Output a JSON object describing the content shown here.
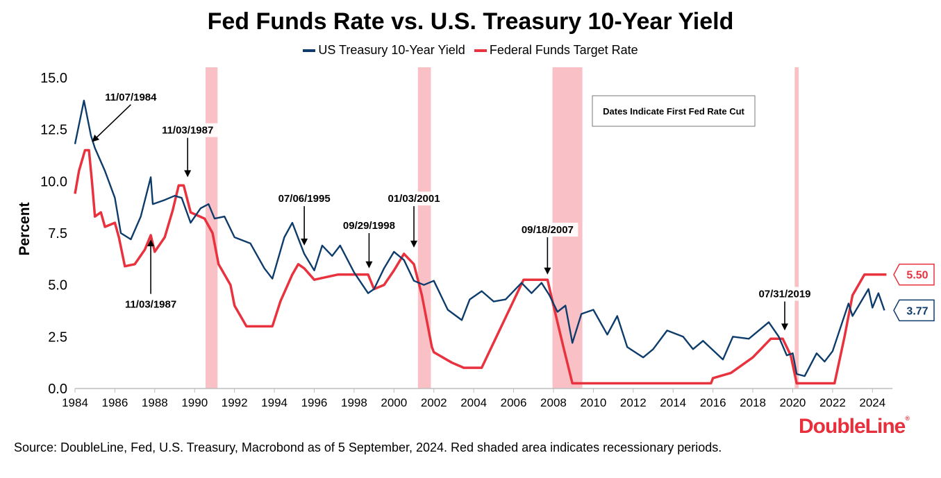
{
  "chart_data": {
    "type": "line",
    "title": "Fed Funds Rate vs. U.S. Treasury 10-Year Yield",
    "ylabel": "Percent",
    "xlim": [
      1984,
      2025
    ],
    "ylim": [
      0,
      15
    ],
    "x_ticks": [
      1984,
      1986,
      1988,
      1990,
      1992,
      1994,
      1996,
      1998,
      2000,
      2002,
      2004,
      2006,
      2008,
      2010,
      2012,
      2014,
      2016,
      2018,
      2020,
      2022,
      2024
    ],
    "y_ticks": [
      0,
      2.5,
      5,
      7.5,
      10,
      12.5,
      15
    ],
    "y_tick_labels": [
      "0.0",
      "2.5",
      "5.0",
      "7.5",
      "10.0",
      "12.5",
      "15.0"
    ],
    "legend_position": "top-center",
    "recessions": [
      [
        1990.55,
        1991.15
      ],
      [
        2001.2,
        2001.85
      ],
      [
        2007.95,
        2009.45
      ],
      [
        2020.1,
        2020.3
      ]
    ],
    "recession_color": "#f9c0c6",
    "series": [
      {
        "name": "US Treasury 10-Year Yield",
        "color": "#0d3c6b",
        "points": [
          [
            1984.0,
            11.8
          ],
          [
            1984.45,
            13.9
          ],
          [
            1984.8,
            12.2
          ],
          [
            1985.0,
            11.6
          ],
          [
            1985.5,
            10.5
          ],
          [
            1986.0,
            9.2
          ],
          [
            1986.3,
            7.5
          ],
          [
            1986.8,
            7.2
          ],
          [
            1987.3,
            8.3
          ],
          [
            1987.8,
            10.2
          ],
          [
            1987.9,
            8.9
          ],
          [
            1988.5,
            9.1
          ],
          [
            1989.0,
            9.3
          ],
          [
            1989.35,
            9.2
          ],
          [
            1989.8,
            8.0
          ],
          [
            1990.3,
            8.7
          ],
          [
            1990.7,
            8.9
          ],
          [
            1991.0,
            8.2
          ],
          [
            1991.5,
            8.3
          ],
          [
            1992.0,
            7.3
          ],
          [
            1992.8,
            7.0
          ],
          [
            1993.5,
            5.8
          ],
          [
            1993.9,
            5.3
          ],
          [
            1994.5,
            7.3
          ],
          [
            1994.9,
            8.0
          ],
          [
            1995.5,
            6.5
          ],
          [
            1996.0,
            5.7
          ],
          [
            1996.4,
            6.9
          ],
          [
            1996.9,
            6.4
          ],
          [
            1997.3,
            6.9
          ],
          [
            1998.0,
            5.6
          ],
          [
            1998.7,
            4.6
          ],
          [
            1999.0,
            4.8
          ],
          [
            1999.5,
            5.8
          ],
          [
            2000.0,
            6.6
          ],
          [
            2000.5,
            6.2
          ],
          [
            2001.0,
            5.2
          ],
          [
            2001.5,
            5.0
          ],
          [
            2002.0,
            5.2
          ],
          [
            2002.7,
            3.8
          ],
          [
            2003.4,
            3.3
          ],
          [
            2003.8,
            4.3
          ],
          [
            2004.4,
            4.7
          ],
          [
            2005.0,
            4.2
          ],
          [
            2005.6,
            4.3
          ],
          [
            2006.4,
            5.1
          ],
          [
            2006.9,
            4.6
          ],
          [
            2007.4,
            5.1
          ],
          [
            2007.8,
            4.5
          ],
          [
            2008.2,
            3.7
          ],
          [
            2008.6,
            4.0
          ],
          [
            2008.95,
            2.2
          ],
          [
            2009.4,
            3.6
          ],
          [
            2010.0,
            3.8
          ],
          [
            2010.7,
            2.6
          ],
          [
            2011.2,
            3.5
          ],
          [
            2011.7,
            2.0
          ],
          [
            2012.5,
            1.5
          ],
          [
            2013.0,
            1.9
          ],
          [
            2013.7,
            2.8
          ],
          [
            2014.5,
            2.5
          ],
          [
            2015.0,
            1.9
          ],
          [
            2015.5,
            2.3
          ],
          [
            2016.5,
            1.4
          ],
          [
            2017.0,
            2.5
          ],
          [
            2017.8,
            2.4
          ],
          [
            2018.8,
            3.2
          ],
          [
            2019.3,
            2.5
          ],
          [
            2019.7,
            1.6
          ],
          [
            2020.0,
            1.7
          ],
          [
            2020.2,
            0.7
          ],
          [
            2020.6,
            0.6
          ],
          [
            2021.2,
            1.7
          ],
          [
            2021.6,
            1.3
          ],
          [
            2022.0,
            1.8
          ],
          [
            2022.8,
            4.1
          ],
          [
            2023.0,
            3.5
          ],
          [
            2023.8,
            4.8
          ],
          [
            2024.0,
            3.9
          ],
          [
            2024.3,
            4.6
          ],
          [
            2024.6,
            3.77
          ]
        ]
      },
      {
        "name": "Federal Funds Target Rate",
        "color": "#e8323e",
        "points": [
          [
            1984.0,
            9.4
          ],
          [
            1984.2,
            10.5
          ],
          [
            1984.5,
            11.5
          ],
          [
            1984.7,
            11.5
          ],
          [
            1984.85,
            10.0
          ],
          [
            1985.0,
            8.3
          ],
          [
            1985.3,
            8.5
          ],
          [
            1985.5,
            7.8
          ],
          [
            1986.0,
            8.0
          ],
          [
            1986.2,
            7.3
          ],
          [
            1986.5,
            5.9
          ],
          [
            1987.0,
            6.0
          ],
          [
            1987.5,
            6.7
          ],
          [
            1987.8,
            7.4
          ],
          [
            1988.0,
            6.6
          ],
          [
            1988.5,
            7.3
          ],
          [
            1988.9,
            8.6
          ],
          [
            1989.2,
            9.8
          ],
          [
            1989.45,
            9.8
          ],
          [
            1989.8,
            8.5
          ],
          [
            1990.5,
            8.2
          ],
          [
            1990.9,
            7.5
          ],
          [
            1991.2,
            6.0
          ],
          [
            1991.8,
            5.0
          ],
          [
            1992.0,
            4.0
          ],
          [
            1992.6,
            3.0
          ],
          [
            1993.0,
            3.0
          ],
          [
            1993.9,
            3.0
          ],
          [
            1994.3,
            4.2
          ],
          [
            1994.9,
            5.5
          ],
          [
            1995.2,
            6.0
          ],
          [
            1995.5,
            5.8
          ],
          [
            1996.0,
            5.25
          ],
          [
            1997.2,
            5.5
          ],
          [
            1998.7,
            5.5
          ],
          [
            1999.0,
            4.8
          ],
          [
            1999.5,
            5.0
          ],
          [
            2000.0,
            5.7
          ],
          [
            2000.5,
            6.5
          ],
          [
            2001.0,
            6.0
          ],
          [
            2001.4,
            4.5
          ],
          [
            2001.9,
            2.0
          ],
          [
            2002.0,
            1.75
          ],
          [
            2002.9,
            1.25
          ],
          [
            2003.5,
            1.0
          ],
          [
            2004.4,
            1.0
          ],
          [
            2006.5,
            5.25
          ],
          [
            2007.7,
            5.25
          ],
          [
            2008.0,
            4.0
          ],
          [
            2008.5,
            2.0
          ],
          [
            2008.95,
            0.25
          ],
          [
            2015.9,
            0.25
          ],
          [
            2016.0,
            0.5
          ],
          [
            2016.9,
            0.75
          ],
          [
            2018.0,
            1.5
          ],
          [
            2018.9,
            2.4
          ],
          [
            2019.5,
            2.4
          ],
          [
            2019.9,
            1.6
          ],
          [
            2020.2,
            0.25
          ],
          [
            2022.1,
            0.25
          ],
          [
            2022.6,
            2.5
          ],
          [
            2023.0,
            4.5
          ],
          [
            2023.6,
            5.5
          ],
          [
            2024.7,
            5.5
          ]
        ]
      }
    ],
    "annotations": [
      {
        "label": "11/07/1984",
        "x": 1984.85,
        "y": 11.9,
        "text_x": 1986.8,
        "text_y": 13.7
      },
      {
        "label": "11/03/1987",
        "x": 1989.65,
        "y": 10.2,
        "text_x": 1989.65,
        "text_y": 12.1
      },
      {
        "label": "11/03/1987",
        "x": 1987.8,
        "y": 7.2,
        "text_x": 1987.8,
        "text_y": 4.5
      },
      {
        "label": "07/06/1995",
        "x": 1995.5,
        "y": 6.9,
        "text_x": 1995.5,
        "text_y": 8.8
      },
      {
        "label": "09/29/1998",
        "x": 1998.75,
        "y": 5.8,
        "text_x": 1998.75,
        "text_y": 7.5
      },
      {
        "label": "01/03/2001",
        "x": 2001.0,
        "y": 6.8,
        "text_x": 2001.0,
        "text_y": 8.8
      },
      {
        "label": "09/18/2007",
        "x": 2007.7,
        "y": 5.5,
        "text_x": 2007.7,
        "text_y": 7.3
      },
      {
        "label": "07/31/2019",
        "x": 2019.6,
        "y": 2.8,
        "text_x": 2019.6,
        "text_y": 4.2
      }
    ],
    "note_box": "Dates Indicate First Fed Rate Cut",
    "end_labels": [
      {
        "label": "5.50",
        "value": 5.5,
        "color": "#e8323e"
      },
      {
        "label": "3.77",
        "value": 3.77,
        "color": "#0d3c6b"
      }
    ]
  },
  "source_note": "Source: DoubleLine, Fed, U.S. Treasury, Macrobond as of 5 September, 2024. Red shaded area indicates recessionary periods.",
  "brand": {
    "name": "DoubleLine",
    "mark": "®"
  }
}
